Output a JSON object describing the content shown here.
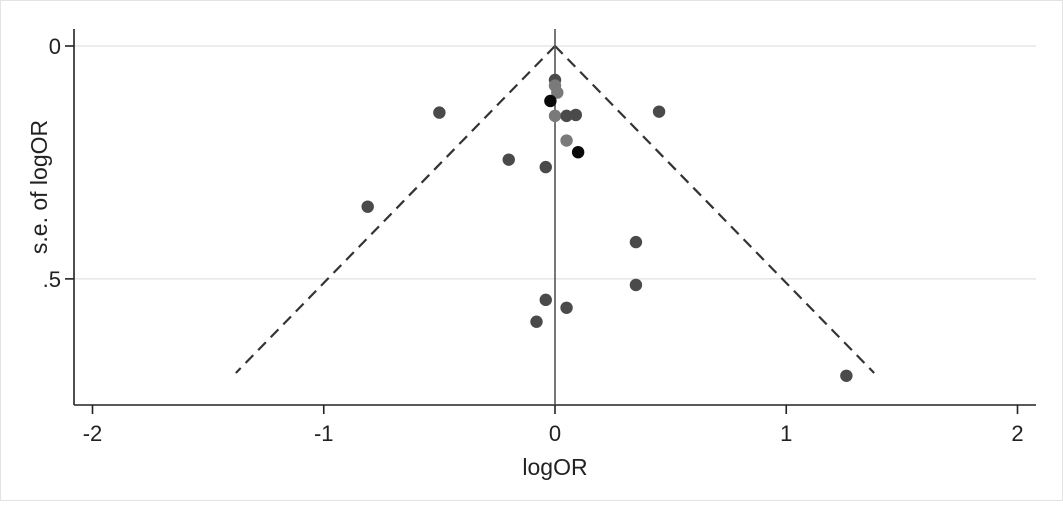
{
  "chart_data": {
    "type": "scatter",
    "title": "",
    "xlabel": "logOR",
    "ylabel": "s.e. of logOR",
    "xlim": [
      -2.08,
      2.08
    ],
    "ylim_inverted": [
      0,
      0.745
    ],
    "x_ticks": [
      "-2",
      "-1",
      "0",
      "1",
      "2"
    ],
    "x_tick_values": [
      -2,
      -1,
      0,
      1,
      2
    ],
    "y_ticks": [
      "0",
      ".5"
    ],
    "y_tick_values": [
      0,
      0.5
    ],
    "grid": "horizontal at y ticks",
    "reference_line": {
      "x": 0
    },
    "pseudo_ci_lines": {
      "style": "dashed",
      "apex": [
        0,
        0
      ],
      "left_end": [
        -1.38,
        0.702
      ],
      "right_end": [
        1.38,
        0.702
      ]
    },
    "colors": {
      "dark": "#0a0a0a",
      "mid": "#4a4a4a",
      "light": "#7a7a7a"
    },
    "points": [
      {
        "x": 0.0,
        "y": 0.073,
        "shade": "mid"
      },
      {
        "x": 0.0,
        "y": 0.085,
        "shade": "light"
      },
      {
        "x": 0.01,
        "y": 0.1,
        "shade": "light"
      },
      {
        "x": -0.02,
        "y": 0.118,
        "shade": "dark"
      },
      {
        "x": -0.5,
        "y": 0.143,
        "shade": "mid"
      },
      {
        "x": 0.45,
        "y": 0.141,
        "shade": "mid"
      },
      {
        "x": 0.0,
        "y": 0.15,
        "shade": "light"
      },
      {
        "x": 0.05,
        "y": 0.15,
        "shade": "mid"
      },
      {
        "x": 0.09,
        "y": 0.148,
        "shade": "mid"
      },
      {
        "x": 0.05,
        "y": 0.203,
        "shade": "light"
      },
      {
        "x": 0.1,
        "y": 0.228,
        "shade": "dark"
      },
      {
        "x": -0.2,
        "y": 0.244,
        "shade": "mid"
      },
      {
        "x": -0.04,
        "y": 0.26,
        "shade": "mid"
      },
      {
        "x": -0.81,
        "y": 0.345,
        "shade": "mid"
      },
      {
        "x": 0.35,
        "y": 0.421,
        "shade": "mid"
      },
      {
        "x": 0.35,
        "y": 0.513,
        "shade": "mid"
      },
      {
        "x": -0.04,
        "y": 0.545,
        "shade": "mid"
      },
      {
        "x": 0.05,
        "y": 0.562,
        "shade": "mid"
      },
      {
        "x": -0.08,
        "y": 0.592,
        "shade": "mid"
      },
      {
        "x": 1.26,
        "y": 0.708,
        "shade": "mid"
      }
    ]
  }
}
